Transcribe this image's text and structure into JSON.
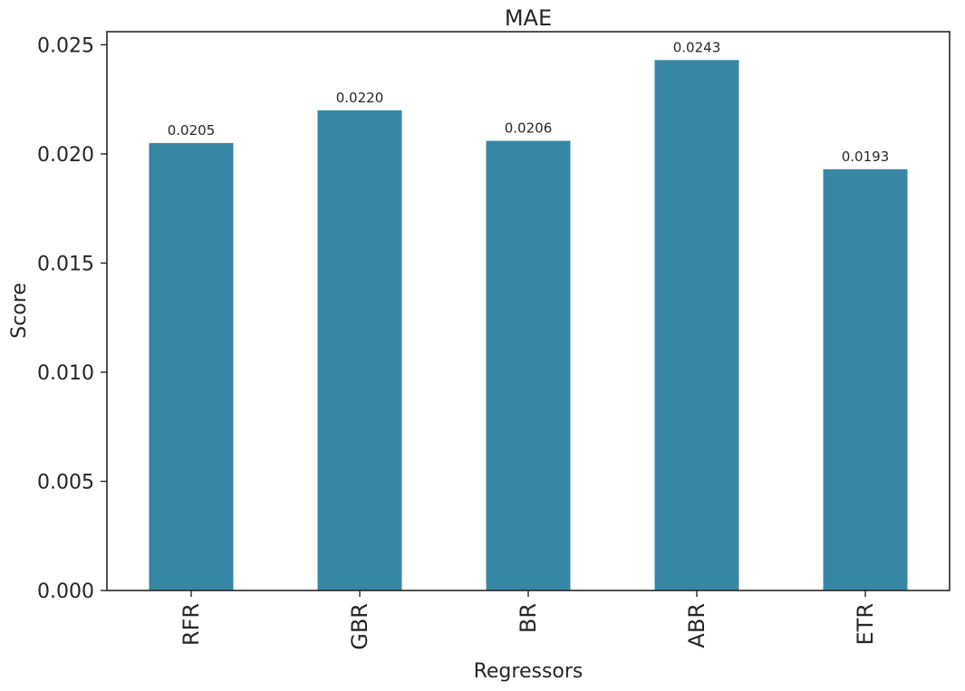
{
  "chart_data": {
    "type": "bar",
    "title": "MAE",
    "xlabel": "Regressors",
    "ylabel": "Score",
    "categories": [
      "RFR",
      "GBR",
      "BR",
      "ABR",
      "ETR"
    ],
    "values": [
      0.0205,
      0.022,
      0.0206,
      0.0243,
      0.0193
    ],
    "data_labels": [
      "0.0205",
      "0.0220",
      "0.0206",
      "0.0243",
      "0.0193"
    ],
    "ylim": [
      0,
      0.0256
    ],
    "yticks": [
      0.0,
      0.005,
      0.01,
      0.015,
      0.02,
      0.025
    ],
    "ytick_labels": [
      "0.000",
      "0.005",
      "0.010",
      "0.015",
      "0.020",
      "0.025"
    ],
    "grid": false,
    "bar_color": "#3787a4",
    "axis_color": "#262626"
  }
}
